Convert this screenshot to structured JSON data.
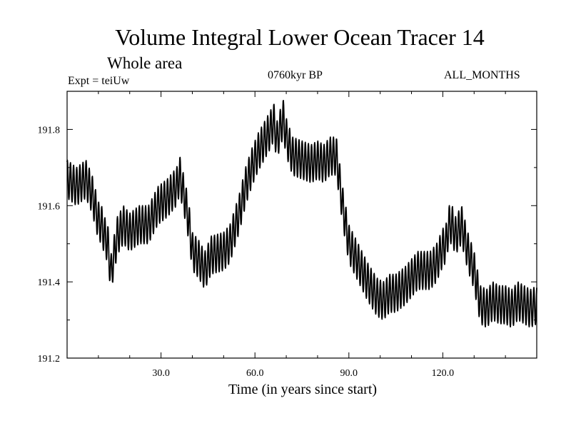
{
  "chart_data": {
    "type": "line",
    "title": "Volume Integral Lower Ocean Tracer 14",
    "subtitle": "Whole area",
    "expt_label": "Expt = teiUw",
    "period_label": "0760kyr BP",
    "months_label": "ALL_MONTHS",
    "xlabel": "Time (in years since start)",
    "ylabel": "",
    "xlim": [
      0,
      150
    ],
    "ylim": [
      191.2,
      191.9
    ],
    "xticks": [
      {
        "value": 30,
        "label": "30.0"
      },
      {
        "value": 60,
        "label": "60.0"
      },
      {
        "value": 90,
        "label": "90.0"
      },
      {
        "value": 120,
        "label": "120.0"
      }
    ],
    "yticks": [
      {
        "value": 191.2,
        "label": "191.2"
      },
      {
        "value": 191.4,
        "label": "191.4"
      },
      {
        "value": 191.6,
        "label": "191.6"
      },
      {
        "value": 191.8,
        "label": "191.8"
      }
    ],
    "oscillation_amplitude": 0.05,
    "oscillation_period_years": 1,
    "series": [
      {
        "name": "Lower Ocean Tracer 14",
        "x": [
          0,
          3,
          6,
          8,
          10,
          11,
          12,
          13,
          14,
          16,
          18,
          20,
          23,
          26,
          29,
          32,
          35,
          36,
          38,
          39,
          40,
          42,
          44,
          46,
          50,
          52,
          55,
          57,
          59,
          61,
          63,
          65,
          66,
          67,
          68,
          69,
          70,
          72,
          75,
          78,
          80,
          82,
          84,
          86,
          88,
          90,
          93,
          96,
          99,
          101,
          103,
          105,
          108,
          110,
          112,
          114,
          116,
          118,
          120,
          121,
          122,
          123,
          124,
          126,
          128,
          130,
          132,
          134,
          136,
          138,
          140,
          142,
          144,
          146,
          148,
          150
        ],
        "values": [
          191.67,
          191.65,
          191.67,
          191.63,
          191.56,
          191.55,
          191.52,
          191.5,
          191.42,
          191.52,
          191.55,
          191.53,
          191.55,
          191.55,
          191.6,
          191.62,
          191.65,
          191.68,
          191.6,
          191.55,
          191.48,
          191.46,
          191.43,
          191.47,
          191.48,
          191.5,
          191.58,
          191.65,
          191.7,
          191.74,
          191.77,
          191.8,
          191.82,
          191.77,
          191.8,
          191.83,
          191.78,
          191.73,
          191.72,
          191.71,
          191.72,
          191.71,
          191.73,
          191.73,
          191.6,
          191.5,
          191.45,
          191.4,
          191.36,
          191.35,
          191.37,
          191.37,
          191.39,
          191.41,
          191.43,
          191.43,
          191.43,
          191.45,
          191.49,
          191.5,
          191.55,
          191.55,
          191.52,
          191.55,
          191.48,
          191.43,
          191.34,
          191.33,
          191.35,
          191.34,
          191.34,
          191.33,
          191.35,
          191.34,
          191.33,
          191.34
        ]
      }
    ]
  }
}
